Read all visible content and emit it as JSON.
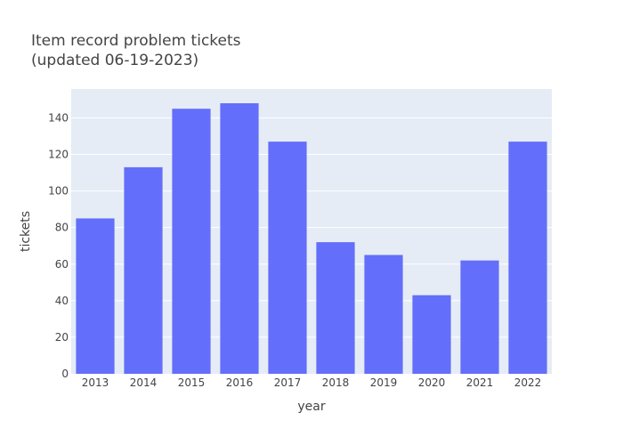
{
  "chart_data": {
    "type": "bar",
    "title_lines": [
      "Item record problem tickets",
      "(updated 06-19-2023)"
    ],
    "xlabel": "year",
    "ylabel": "tickets",
    "categories": [
      "2013",
      "2014",
      "2015",
      "2016",
      "2017",
      "2018",
      "2019",
      "2020",
      "2021",
      "2022"
    ],
    "values": [
      85,
      113,
      145,
      148,
      127,
      72,
      65,
      43,
      62,
      127
    ],
    "ylim": [
      0,
      155.8
    ],
    "yticks": [
      0,
      20,
      40,
      60,
      80,
      100,
      120,
      140
    ],
    "grid": true,
    "legend": "none",
    "colors": {
      "bar": "#636efa",
      "plot_bg": "#e5ecf6",
      "grid": "#ffffff",
      "text": "#444444"
    }
  }
}
